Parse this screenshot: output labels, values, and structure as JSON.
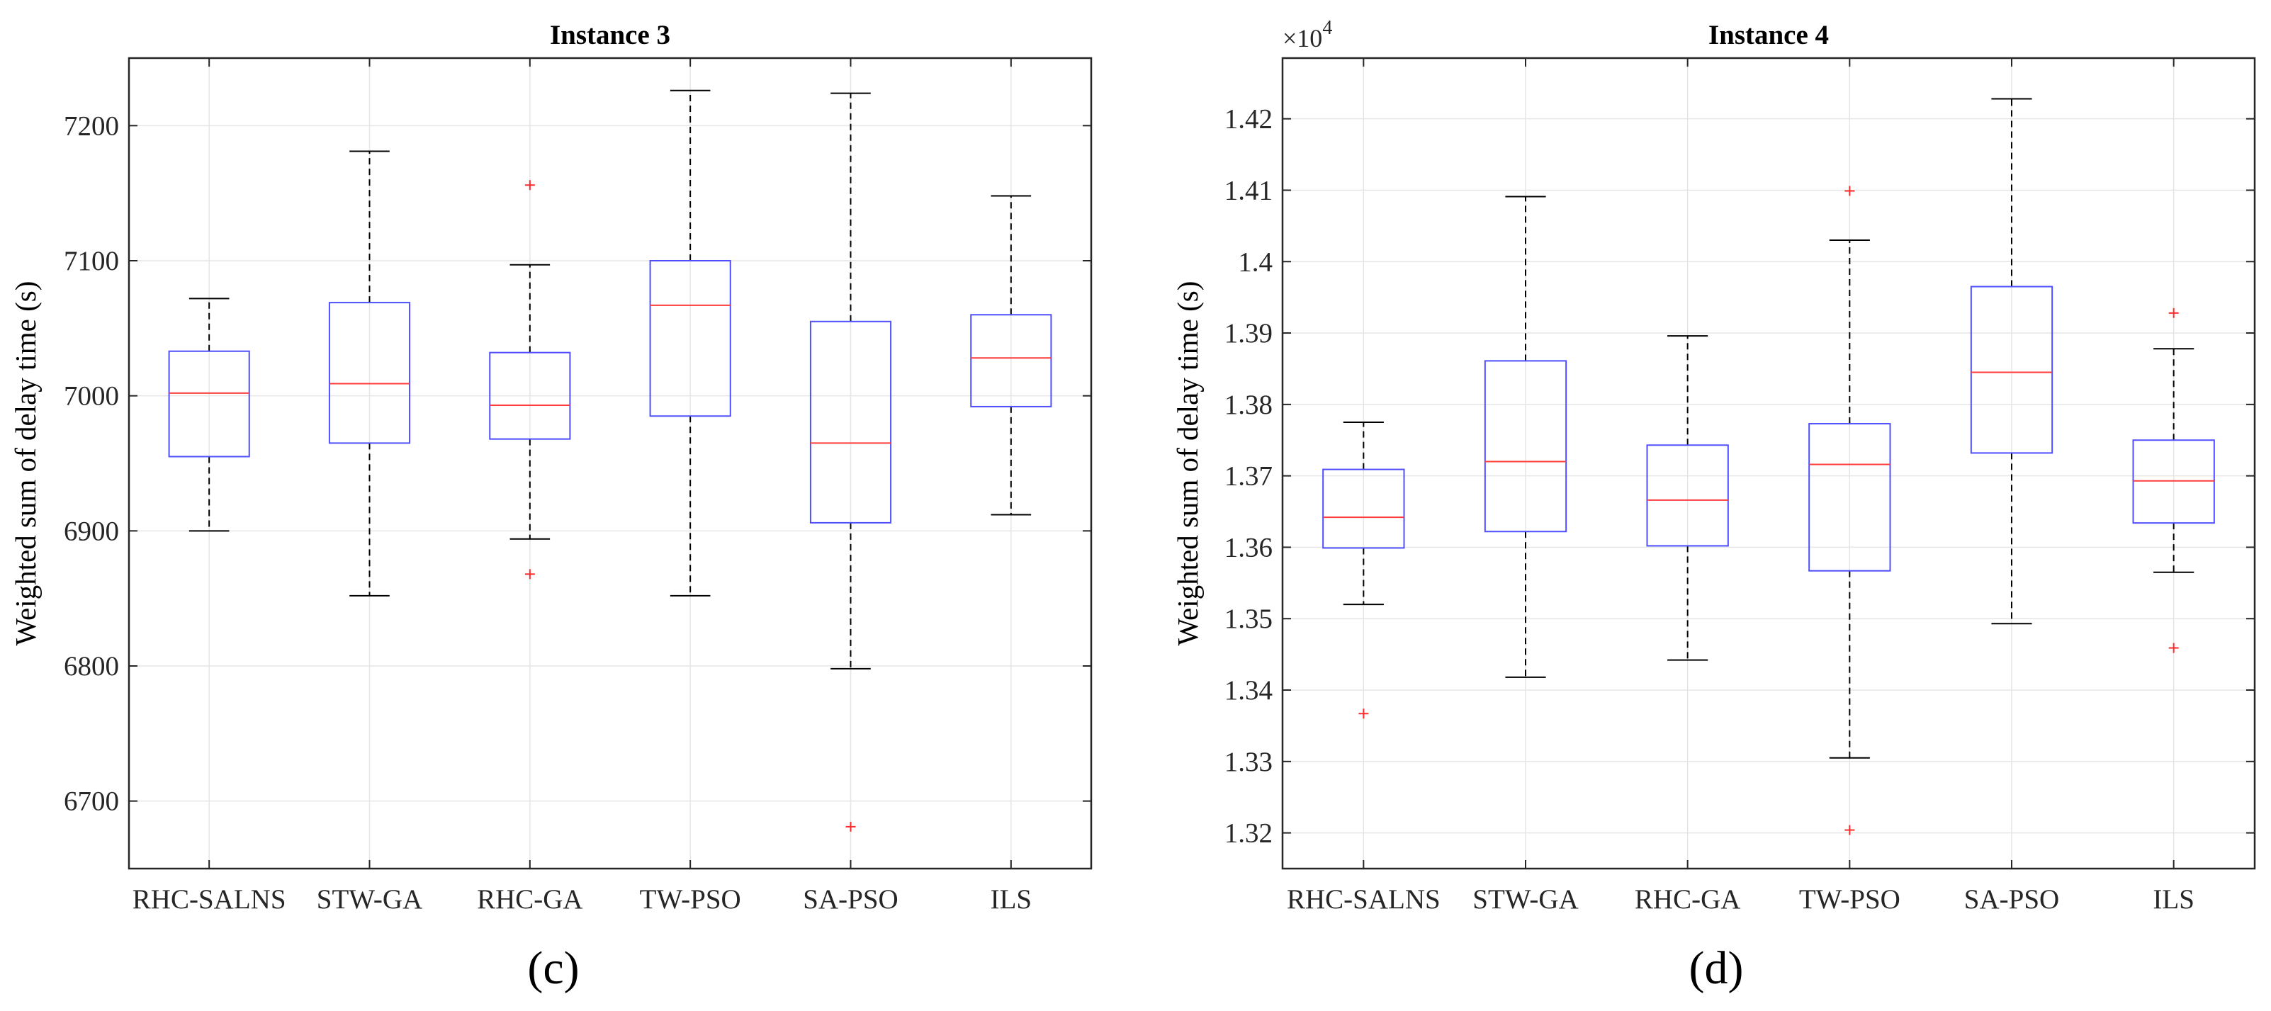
{
  "colors": {
    "box": "#4f4fff",
    "median": "#ff3b3b",
    "outlier": "#ff2a2a",
    "whisker": "#000000",
    "grid": "#e6e6e6",
    "axis": "#262626"
  },
  "chart_data": [
    {
      "type": "box",
      "title": "Instance 3",
      "panel_label": "(c)",
      "ylabel": "Weighted sum of delay time (s)",
      "xlabel": "",
      "ylim": [
        6650,
        7250
      ],
      "yticks": [
        6700,
        6800,
        6900,
        7000,
        7100,
        7200
      ],
      "ytick_labels": [
        "6700",
        "6800",
        "6900",
        "7000",
        "7100",
        "7200"
      ],
      "exponent_label": "",
      "grid": true,
      "categories": [
        "RHC-SALNS",
        "STW-GA",
        "RHC-GA",
        "TW-PSO",
        "SA-PSO",
        "ILS"
      ],
      "boxes": [
        {
          "name": "RHC-SALNS",
          "whisker_low": 6900,
          "q1": 6955,
          "median": 7002,
          "q3": 7033,
          "whisker_high": 7072,
          "outliers": []
        },
        {
          "name": "STW-GA",
          "whisker_low": 6852,
          "q1": 6965,
          "median": 7009,
          "q3": 7069,
          "whisker_high": 7181,
          "outliers": []
        },
        {
          "name": "RHC-GA",
          "whisker_low": 6894,
          "q1": 6968,
          "median": 6993,
          "q3": 7032,
          "whisker_high": 7097,
          "outliers": [
            7156,
            6868
          ]
        },
        {
          "name": "TW-PSO",
          "whisker_low": 6852,
          "q1": 6985,
          "median": 7067,
          "q3": 7100,
          "whisker_high": 7226,
          "outliers": []
        },
        {
          "name": "SA-PSO",
          "whisker_low": 6798,
          "q1": 6906,
          "median": 6965,
          "q3": 7055,
          "whisker_high": 7224,
          "outliers": [
            6681
          ]
        },
        {
          "name": "ILS",
          "whisker_low": 6912,
          "q1": 6992,
          "median": 7028,
          "q3": 7060,
          "whisker_high": 7148,
          "outliers": []
        }
      ]
    },
    {
      "type": "box",
      "title": "Instance 4",
      "panel_label": "(d)",
      "ylabel": "Weighted sum of delay time (s)",
      "xlabel": "",
      "ylim": [
        13150,
        14285
      ],
      "yticks": [
        13200,
        13300,
        13400,
        13500,
        13600,
        13700,
        13800,
        13900,
        14000,
        14100,
        14200
      ],
      "ytick_labels": [
        "1.32",
        "1.33",
        "1.34",
        "1.35",
        "1.36",
        "1.37",
        "1.38",
        "1.39",
        "1.4",
        "1.41",
        "1.42"
      ],
      "exponent_label": "×10",
      "exponent_power": "4",
      "grid": true,
      "categories": [
        "RHC-SALNS",
        "STW-GA",
        "RHC-GA",
        "TW-PSO",
        "SA-PSO",
        "ILS"
      ],
      "boxes": [
        {
          "name": "RHC-SALNS",
          "whisker_low": 13520,
          "q1": 13599,
          "median": 13642,
          "q3": 13709,
          "whisker_high": 13775,
          "outliers": [
            13367
          ]
        },
        {
          "name": "STW-GA",
          "whisker_low": 13418,
          "q1": 13622,
          "median": 13720,
          "q3": 13861,
          "whisker_high": 14091,
          "outliers": []
        },
        {
          "name": "RHC-GA",
          "whisker_low": 13442,
          "q1": 13602,
          "median": 13666,
          "q3": 13743,
          "whisker_high": 13896,
          "outliers": []
        },
        {
          "name": "TW-PSO",
          "whisker_low": 13305,
          "q1": 13567,
          "median": 13716,
          "q3": 13773,
          "whisker_high": 14030,
          "outliers": [
            14099,
            13204
          ]
        },
        {
          "name": "SA-PSO",
          "whisker_low": 13493,
          "q1": 13732,
          "median": 13845,
          "q3": 13965,
          "whisker_high": 14228,
          "outliers": []
        },
        {
          "name": "ILS",
          "whisker_low": 13565,
          "q1": 13634,
          "median": 13693,
          "q3": 13750,
          "whisker_high": 13878,
          "outliers": [
            13928,
            13459
          ]
        }
      ]
    }
  ]
}
